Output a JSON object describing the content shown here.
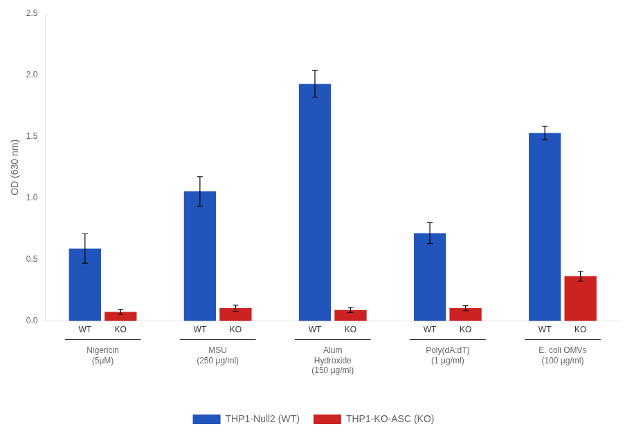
{
  "chart_data": {
    "type": "bar",
    "categories": [
      [
        "Nigericin",
        "(5μM)"
      ],
      [
        "MSU",
        "(250 μg/ml)"
      ],
      [
        "Alum",
        "Hydroxide",
        "(150 μg/ml)"
      ],
      [
        "Poly(dA:dT)",
        "(1 μg/ml)"
      ],
      [
        "E. coli OMVs",
        "(100 μg/ml)"
      ]
    ],
    "series": [
      {
        "name": "THP1-Null2 (WT)",
        "short_label": "WT",
        "color": "#2255bb",
        "values": [
          0.59,
          1.055,
          1.93,
          0.715,
          1.53
        ],
        "errors": [
          0.12,
          0.12,
          0.11,
          0.085,
          0.055
        ]
      },
      {
        "name": "THP1-KO-ASC (KO)",
        "short_label": "KO",
        "color": "#cc2222",
        "values": [
          0.075,
          0.105,
          0.09,
          0.105,
          0.365
        ],
        "errors": [
          0.02,
          0.025,
          0.02,
          0.02,
          0.04
        ]
      }
    ],
    "ylabel": "OD (630 nm)",
    "ylim": [
      0,
      2.5
    ],
    "yticks": [
      {
        "value": 0,
        "label": "0.0"
      },
      {
        "value": 0.5,
        "label": "0.5"
      },
      {
        "value": 1,
        "label": "1.0"
      },
      {
        "value": 1.5,
        "label": "1.5"
      },
      {
        "value": 2,
        "label": "2.0"
      },
      {
        "value": 2.5,
        "label": "2.5"
      }
    ],
    "grid": false,
    "legend": "bottom"
  }
}
